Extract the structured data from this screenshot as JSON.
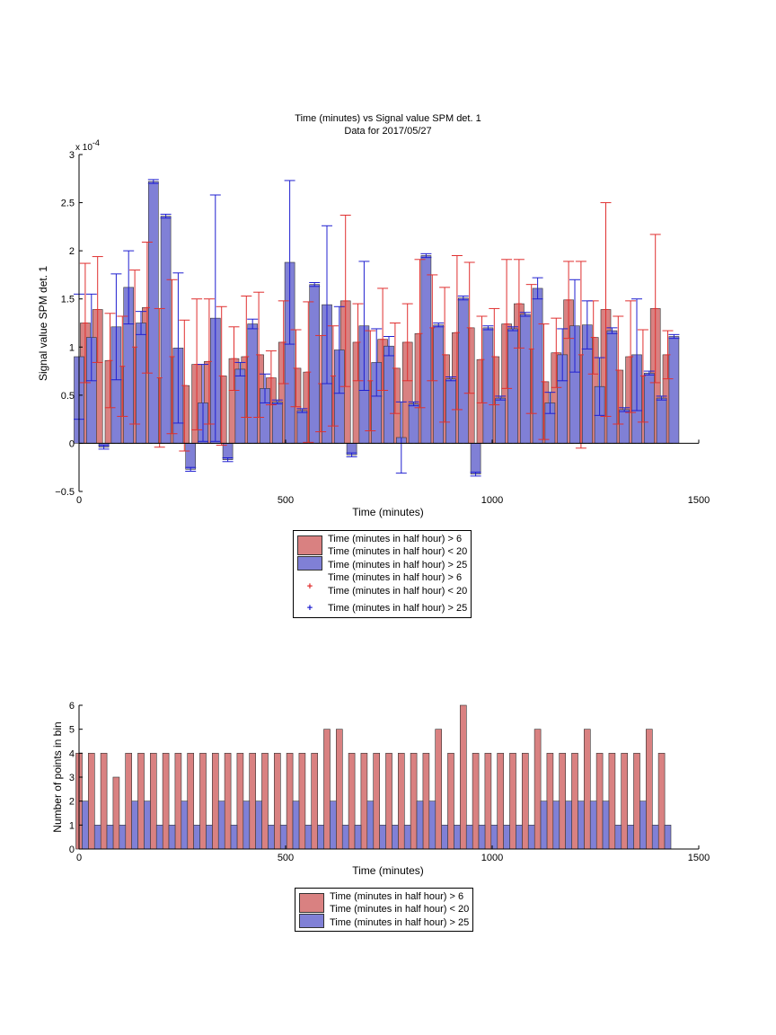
{
  "colors": {
    "red_fill": "#d98181",
    "blue_fill": "#8080d6",
    "red_line": "#e03030",
    "blue_line": "#2020d0"
  },
  "chart_data": [
    {
      "type": "bar",
      "title": "Time (minutes) vs Signal value SPM det. 1",
      "subtitle": "Data for 2017/05/27",
      "xlabel": "Time (minutes)",
      "ylabel": "Signal value SPM det. 1",
      "y_exponent_label": "x 10",
      "y_exponent_power": "-4",
      "xlim": [
        0,
        1500
      ],
      "ylim": [
        -0.5,
        3
      ],
      "xticks": [
        "0",
        "500",
        "1000",
        "1500"
      ],
      "yticks": [
        "−0.5",
        "0",
        "0.5",
        "1",
        "1.5",
        "2",
        "2.5",
        "3"
      ],
      "legend_placement": "below",
      "legend": [
        {
          "type": "swatch",
          "series": "red",
          "text": "Time (minutes in half hour) > 6\nTime (minutes in half hour) < 20"
        },
        {
          "type": "swatch",
          "series": "blue",
          "text": "Time (minutes in half hour) > 25"
        },
        {
          "type": "marker",
          "series": "red",
          "symbol": "+",
          "text": "Time (minutes in half hour) > 6\nTime (minutes in half hour) < 20"
        },
        {
          "type": "marker",
          "series": "blue",
          "symbol": "+",
          "text": "Time (minutes in half hour) > 25"
        }
      ],
      "series": [
        {
          "name": "Time (minutes in half hour) > 6\nTime (minutes in half hour) < 20",
          "x": [
            15,
            45,
            75,
            105,
            135,
            165,
            195,
            225,
            255,
            285,
            315,
            345,
            375,
            405,
            435,
            465,
            495,
            525,
            555,
            585,
            615,
            645,
            675,
            705,
            735,
            765,
            795,
            825,
            855,
            885,
            915,
            945,
            975,
            1005,
            1035,
            1065,
            1095,
            1125,
            1155,
            1185,
            1215,
            1245,
            1275,
            1305,
            1335,
            1365,
            1395,
            1425
          ],
          "y": [
            1.25,
            1.39,
            0.86,
            0.8,
            1.0,
            1.41,
            0.68,
            0.9,
            0.6,
            0.82,
            0.85,
            0.7,
            0.88,
            0.9,
            0.92,
            0.68,
            1.05,
            0.78,
            0.74,
            0.62,
            0.7,
            1.48,
            1.05,
            0.65,
            1.08,
            0.78,
            1.05,
            1.14,
            1.2,
            0.92,
            1.15,
            1.2,
            0.87,
            0.9,
            1.24,
            1.45,
            0.98,
            0.64,
            0.94,
            1.49,
            0.92,
            1.1,
            1.39,
            0.76,
            0.9,
            0.7,
            1.4,
            0.92
          ],
          "err": [
            0.62,
            0.55,
            0.49,
            0.52,
            0.8,
            0.68,
            0.72,
            0.8,
            0.68,
            0.68,
            0.65,
            0.72,
            0.33,
            0.63,
            0.65,
            0.28,
            0.43,
            0.4,
            0.73,
            0.5,
            0.52,
            0.89,
            0.4,
            0.52,
            0.53,
            0.47,
            0.4,
            0.77,
            0.55,
            0.7,
            0.8,
            0.68,
            0.45,
            0.5,
            0.67,
            0.46,
            0.67,
            0.6,
            0.36,
            0.4,
            0.97,
            0.38,
            1.11,
            0.56,
            0.58,
            0.48,
            0.77,
            0.25
          ]
        },
        {
          "name": "Time (minutes in half hour) > 25",
          "x": [
            0,
            30,
            60,
            90,
            120,
            150,
            180,
            210,
            240,
            270,
            300,
            330,
            360,
            390,
            420,
            450,
            480,
            510,
            540,
            570,
            600,
            630,
            660,
            690,
            720,
            750,
            780,
            810,
            840,
            870,
            900,
            930,
            960,
            990,
            1020,
            1050,
            1080,
            1110,
            1140,
            1170,
            1200,
            1230,
            1260,
            1290,
            1320,
            1350,
            1380,
            1410,
            1440
          ],
          "y": [
            0.9,
            1.1,
            -0.04,
            1.21,
            1.62,
            1.25,
            2.72,
            2.36,
            0.99,
            -0.27,
            0.42,
            1.3,
            -0.17,
            0.77,
            1.24,
            0.57,
            0.43,
            1.88,
            0.34,
            1.65,
            1.44,
            0.97,
            -0.12,
            1.22,
            0.84,
            1.01,
            0.06,
            0.41,
            1.95,
            1.23,
            0.67,
            1.51,
            -0.32,
            1.2,
            0.47,
            1.19,
            1.34,
            1.61,
            0.42,
            0.92,
            1.22,
            1.23,
            0.59,
            1.17,
            0.35,
            0.92,
            0.73,
            0.47,
            1.11
          ]
        }
      ]
    },
    {
      "type": "bar",
      "title": "",
      "xlabel": "Time (minutes)",
      "ylabel": "Number of points in bin",
      "xlim": [
        0,
        1500
      ],
      "ylim": [
        0,
        6
      ],
      "xticks": [
        "0",
        "500",
        "1000",
        "1500"
      ],
      "yticks": [
        "0",
        "1",
        "2",
        "3",
        "4",
        "5",
        "6"
      ],
      "legend_placement": "below",
      "legend": [
        {
          "type": "swatch",
          "series": "red",
          "text": "Time (minutes in half hour) > 6\nTime (minutes in half hour) < 20"
        },
        {
          "type": "swatch",
          "series": "blue",
          "text": "Time (minutes in half hour) > 25"
        }
      ],
      "series": [
        {
          "name": "Time (minutes in half hour) > 6\nTime (minutes in half hour) < 20",
          "x": [
            0,
            30,
            60,
            90,
            120,
            150,
            180,
            210,
            240,
            270,
            300,
            330,
            360,
            390,
            420,
            450,
            480,
            510,
            540,
            570,
            600,
            630,
            660,
            690,
            720,
            750,
            780,
            810,
            840,
            870,
            900,
            930,
            960,
            990,
            1020,
            1050,
            1080,
            1110,
            1140,
            1170,
            1200,
            1230,
            1260,
            1290,
            1320,
            1350,
            1380,
            1410
          ],
          "values": [
            4,
            4,
            4,
            3,
            4,
            4,
            4,
            4,
            4,
            4,
            4,
            4,
            4,
            4,
            4,
            4,
            4,
            4,
            4,
            4,
            5,
            5,
            4,
            4,
            4,
            4,
            4,
            4,
            4,
            5,
            4,
            6,
            4,
            4,
            4,
            4,
            4,
            5,
            4,
            4,
            4,
            5,
            4,
            4,
            4,
            4,
            5,
            4
          ]
        },
        {
          "name": "Time (minutes in half hour) > 25",
          "x": [
            15,
            45,
            75,
            105,
            135,
            165,
            195,
            225,
            255,
            285,
            315,
            345,
            375,
            405,
            435,
            465,
            495,
            525,
            555,
            585,
            615,
            645,
            675,
            705,
            735,
            765,
            795,
            825,
            855,
            885,
            915,
            945,
            975,
            1005,
            1035,
            1065,
            1095,
            1125,
            1155,
            1185,
            1215,
            1245,
            1275,
            1305,
            1335,
            1365,
            1395,
            1425
          ],
          "values": [
            2,
            1,
            1,
            1,
            2,
            2,
            1,
            1,
            2,
            1,
            1,
            2,
            1,
            2,
            2,
            1,
            1,
            2,
            1,
            1,
            2,
            1,
            1,
            2,
            1,
            1,
            1,
            2,
            2,
            1,
            1,
            1,
            1,
            1,
            1,
            1,
            1,
            2,
            2,
            2,
            2,
            2,
            2,
            1,
            1,
            2,
            1,
            1
          ]
        }
      ]
    }
  ]
}
